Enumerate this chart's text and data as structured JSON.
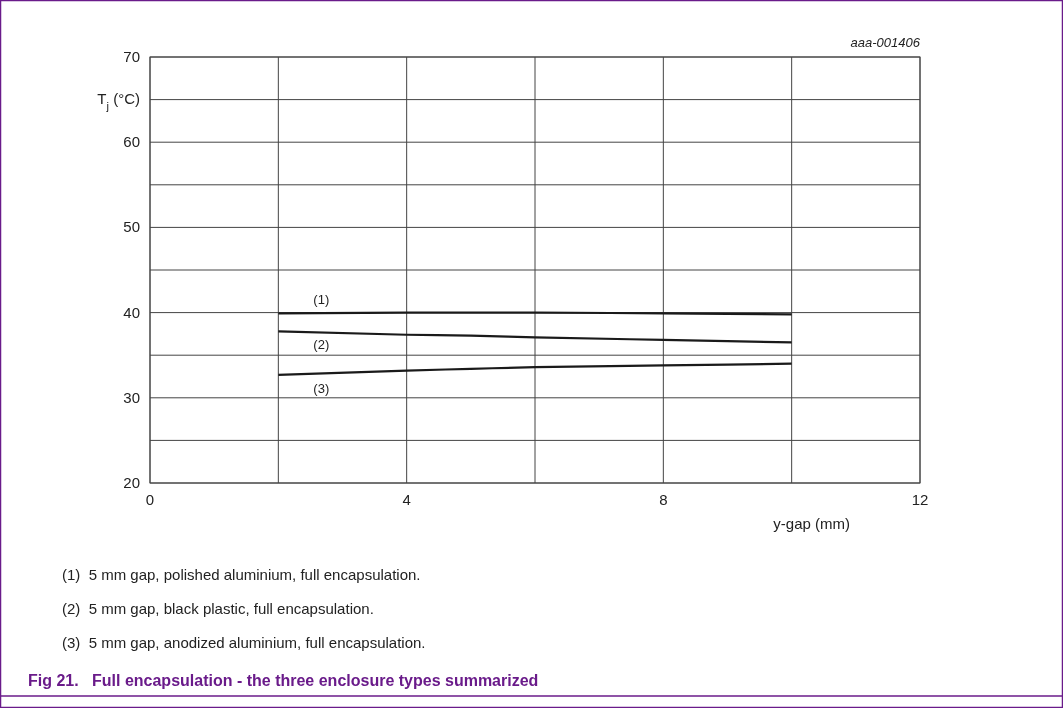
{
  "chart_data": {
    "type": "line",
    "title": "Fig 21.   Full encapsulation - the three enclosure types summarized",
    "xlabel": "y-gap (mm)",
    "ylabel": "T$_{j}$ (°C)",
    "x": [
      2,
      4,
      5,
      6,
      8,
      10
    ],
    "series": [
      {
        "name": "(1)",
        "color": "#1a1a1a",
        "values": [
          39.9,
          40.0,
          40.0,
          40.0,
          39.9,
          39.8
        ]
      },
      {
        "name": "(2)",
        "color": "#1a1a1a",
        "values": [
          37.8,
          37.4,
          37.3,
          37.1,
          36.8,
          36.5
        ]
      },
      {
        "name": "(3)",
        "color": "#1a1a1a",
        "values": [
          32.7,
          33.2,
          33.4,
          33.6,
          33.8,
          34.0
        ]
      }
    ],
    "xlim": [
      0,
      12
    ],
    "xticks": [
      0,
      {
        "value": 2,
        "label": null
      },
      4,
      {
        "value": 6,
        "label": null
      },
      8,
      {
        "value": 10,
        "label": null
      },
      12
    ],
    "ylim": [
      20,
      70
    ],
    "yticks": [
      20,
      {
        "value": 25,
        "label": null
      },
      30,
      {
        "value": 35,
        "label": null
      },
      40,
      {
        "value": 45,
        "label": null
      },
      50,
      {
        "value": 55,
        "label": null
      },
      60,
      {
        "value": 65,
        "label": null
      },
      70
    ],
    "grid": true,
    "marker": "none",
    "line_style": "solid",
    "annotations": [
      "aaa-001406",
      "(1)  5 mm gap, polished aluminium, full encapsulation.",
      "(2)  5 mm gap, black plastic, full encapsulation.",
      "(3)  5 mm gap, anodized aluminium, full encapsulation."
    ]
  }
}
